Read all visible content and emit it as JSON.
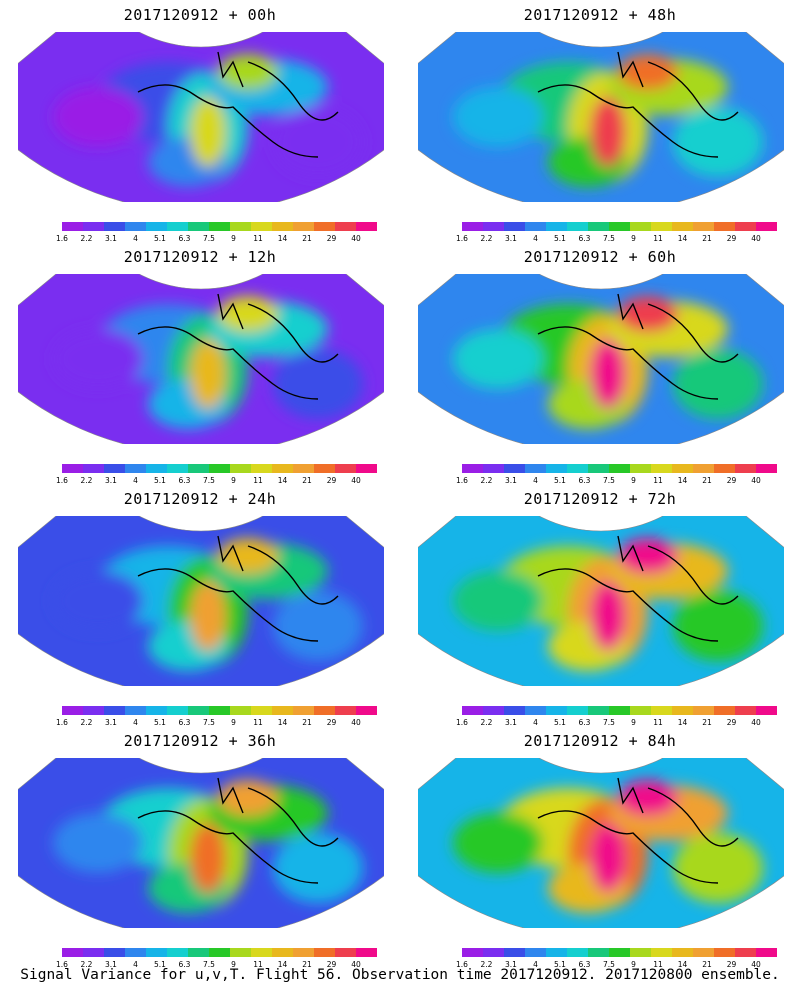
{
  "panels": [
    {
      "title": "2017120912 + 00h",
      "level": 0
    },
    {
      "title": "2017120912 + 48h",
      "level": 4
    },
    {
      "title": "2017120912 + 12h",
      "level": 1
    },
    {
      "title": "2017120912 + 60h",
      "level": 5
    },
    {
      "title": "2017120912 + 24h",
      "level": 2
    },
    {
      "title": "2017120912 + 72h",
      "level": 6
    },
    {
      "title": "2017120912 + 36h",
      "level": 3
    },
    {
      "title": "2017120912 + 84h",
      "level": 7
    }
  ],
  "colorbar": {
    "colors": [
      "#9a1ee6",
      "#7a2ef0",
      "#3a4ee8",
      "#2f86ee",
      "#16b4e8",
      "#15cfcf",
      "#18c87a",
      "#28c828",
      "#a8d81e",
      "#d8d81e",
      "#e8b81e",
      "#f0a032",
      "#f06e28",
      "#ee3e4e",
      "#f00a8a"
    ],
    "tick_labels": [
      "1.6",
      "2.2",
      "3.1",
      "4",
      "5.1",
      "6.3",
      "7.5",
      "9",
      "11",
      "14",
      "21",
      "29",
      "40"
    ]
  },
  "caption": "Signal Variance for u,v,T. Flight 56. Observation time 2017120912. 2017120800 ensemble."
}
